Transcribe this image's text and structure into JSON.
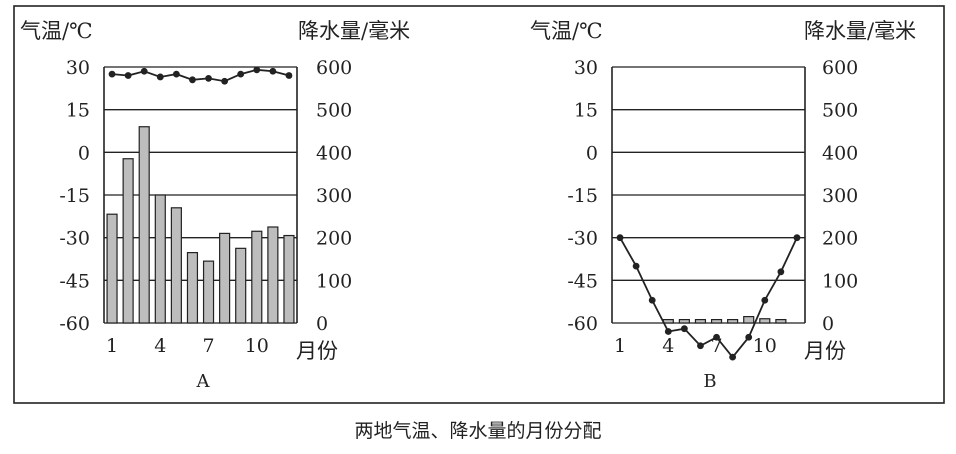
{
  "caption": "两地气温、降水量的月份分配",
  "chart_data": [
    {
      "type": "bar+line",
      "panel_label": "A",
      "left_axis_label": "气温/℃",
      "right_axis_label": "降水量/毫米",
      "x_axis_label": "月份",
      "x_tick_labels": [
        "1",
        "4",
        "7",
        "10"
      ],
      "temp_ticks": [
        "30",
        "15",
        "0",
        "-15",
        "-30",
        "-45",
        "-60"
      ],
      "precip_ticks": [
        "600",
        "500",
        "400",
        "300",
        "200",
        "100",
        "0"
      ],
      "temp_range": [
        -60,
        30
      ],
      "precip_range": [
        0,
        600
      ],
      "months": [
        1,
        2,
        3,
        4,
        5,
        6,
        7,
        8,
        9,
        10,
        11,
        12
      ],
      "temperature": [
        27.5,
        27,
        28.5,
        26.5,
        27.5,
        25.5,
        26,
        25,
        27.5,
        29,
        28.5,
        27
      ],
      "precipitation": [
        255,
        385,
        460,
        300,
        270,
        165,
        145,
        210,
        175,
        215,
        225,
        205
      ],
      "grid": "horizontal"
    },
    {
      "type": "bar+line",
      "panel_label": "B",
      "left_axis_label": "气温/℃",
      "right_axis_label": "降水量/毫米",
      "x_axis_label": "月份",
      "x_tick_labels": [
        "1",
        "4",
        "7",
        "10"
      ],
      "temp_ticks": [
        "30",
        "15",
        "0",
        "-15",
        "-30",
        "-45",
        "-60"
      ],
      "precip_ticks": [
        "600",
        "500",
        "400",
        "300",
        "200",
        "100",
        "0"
      ],
      "temp_range": [
        -60,
        30
      ],
      "precip_range": [
        0,
        600
      ],
      "months": [
        1,
        2,
        3,
        4,
        5,
        6,
        7,
        8,
        9,
        10,
        11,
        12
      ],
      "temperature": [
        -30,
        -40,
        -52,
        -63,
        -62,
        -68,
        -65,
        -72,
        -65,
        -52,
        -42,
        -30
      ],
      "precipitation": [
        0,
        0,
        0,
        8,
        8,
        8,
        8,
        8,
        15,
        10,
        8,
        0
      ],
      "grid": "horizontal"
    }
  ],
  "colors": {
    "bar_fill": "#bdbdbd",
    "ink": "#222222"
  }
}
